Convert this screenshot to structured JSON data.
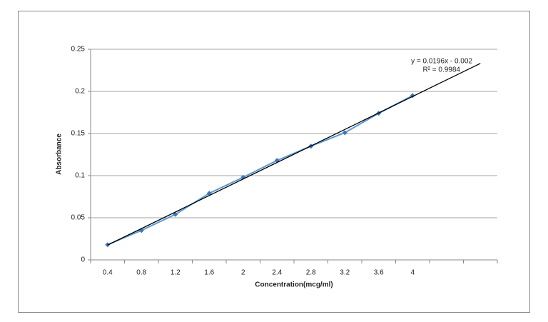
{
  "chart_data": {
    "type": "line",
    "x_label": "Concentration(mcg/ml)",
    "y_label": "Absorbance",
    "categories": [
      "0.4",
      "0.8",
      "1.2",
      "1.6",
      "2",
      "2.4",
      "2.8",
      "3.2",
      "3.6",
      "4",
      null,
      null
    ],
    "series": [
      {
        "name": null,
        "color": "#5b9bd5",
        "marker_color": "#3a78b8",
        "values": [
          0.018,
          0.035,
          0.054,
          0.079,
          0.098,
          0.118,
          0.135,
          0.151,
          0.174,
          0.195,
          null,
          null
        ]
      }
    ],
    "ylim": [
      0,
      0.25
    ],
    "yticks": [
      0,
      0.05,
      0.1,
      0.15,
      0.2,
      0.25
    ],
    "grid": true,
    "trendline": {
      "equation": "y = 0.0196x - 0.002",
      "r_squared": "R² = 0.9984",
      "slope": 0.0196,
      "intercept": -0.002,
      "color": "#000000"
    }
  }
}
